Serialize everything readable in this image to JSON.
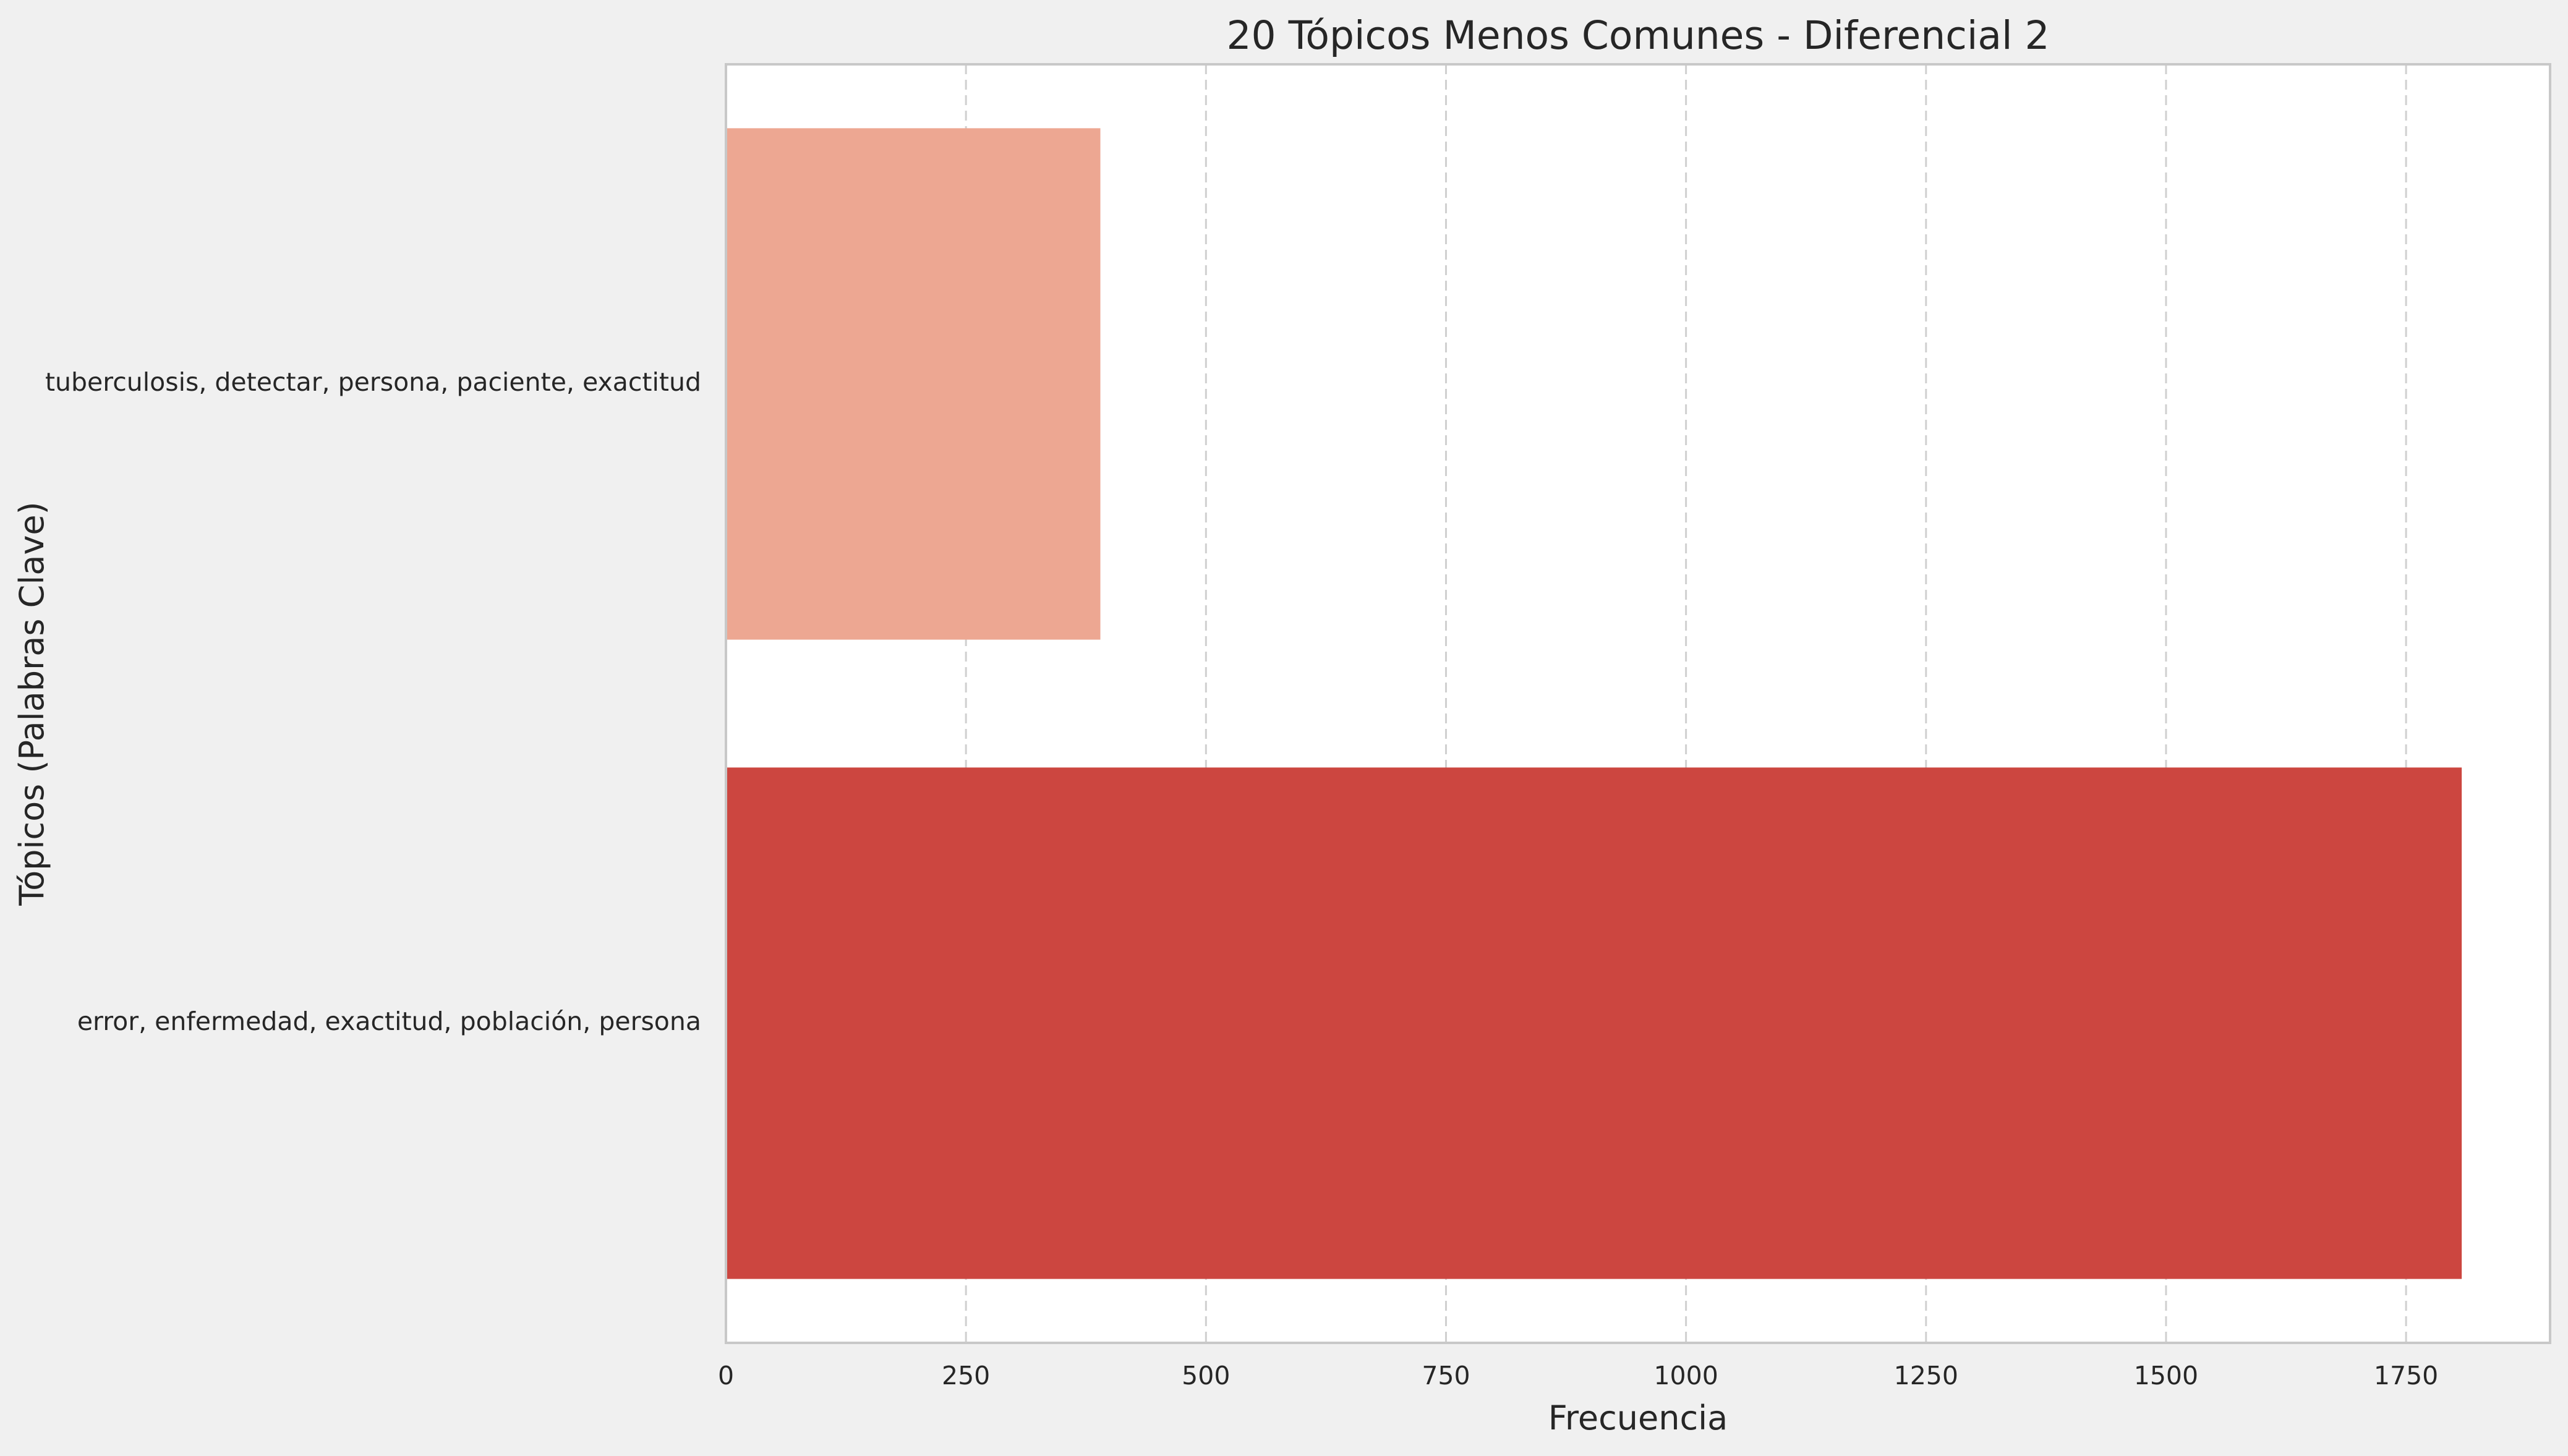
{
  "chart_data": {
    "type": "bar",
    "orientation": "horizontal",
    "title": "20 Tópicos Menos Comunes - Diferencial 2",
    "xlabel": "Frecuencia",
    "ylabel": "Tópicos (Palabras Clave)",
    "xlim": [
      0,
      1900
    ],
    "xticks": [
      0,
      250,
      500,
      750,
      1000,
      1250,
      1500,
      1750
    ],
    "grid": "x-dashed",
    "categories": [
      "tuberculosis, detectar, persona, paciente, exactitud",
      "error, enfermedad, exactitud, población, persona"
    ],
    "values": [
      390,
      1808
    ],
    "colors": [
      "#eda792",
      "#cc4640"
    ]
  },
  "colors": {
    "figure_background": "#f0f0f0",
    "plot_background": "#ffffff",
    "grid": "#d0d0d0",
    "frame": "#c8c8c8",
    "text": "#262626"
  }
}
